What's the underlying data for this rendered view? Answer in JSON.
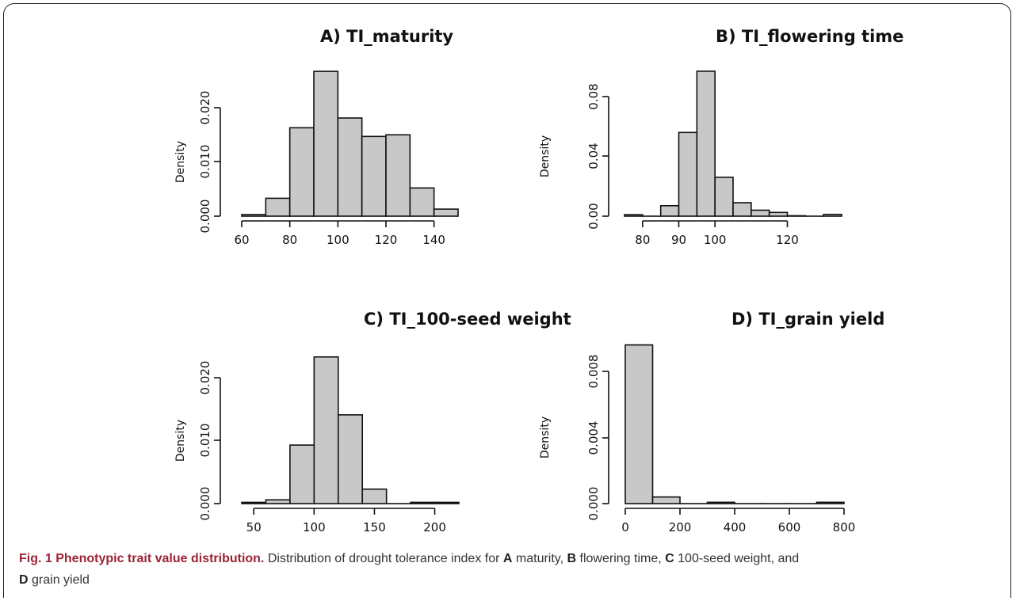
{
  "chart_data": [
    {
      "type": "bar",
      "title": "A) TI_maturity",
      "ylabel": "Density",
      "xlim": [
        60,
        150
      ],
      "ylim": [
        0,
        0.026
      ],
      "xticks": [
        60,
        80,
        100,
        120,
        140
      ],
      "xtick_labels": [
        "60",
        "80",
        "100",
        "120",
        "140"
      ],
      "yticks": [
        0,
        0.01,
        0.02
      ],
      "ytick_labels": [
        "0.000",
        "0.010",
        "0.020"
      ],
      "bins": [
        [
          60,
          70
        ],
        [
          70,
          80
        ],
        [
          80,
          90
        ],
        [
          90,
          100
        ],
        [
          100,
          110
        ],
        [
          110,
          120
        ],
        [
          120,
          130
        ],
        [
          130,
          140
        ],
        [
          140,
          150
        ]
      ],
      "values": [
        0.0003,
        0.0033,
        0.0163,
        0.0267,
        0.0181,
        0.0147,
        0.015,
        0.0052,
        0.0013
      ]
    },
    {
      "type": "bar",
      "title": "B) TI_flowering time",
      "ylabel": "Density",
      "xlim": [
        75,
        135
      ],
      "ylim": [
        0,
        0.1
      ],
      "xticks": [
        80,
        90,
        100,
        120
      ],
      "xtick_labels": [
        "80",
        "90",
        "100",
        "120"
      ],
      "yticks": [
        0,
        0.04,
        0.08
      ],
      "ytick_labels": [
        "0.00",
        "0.04",
        "0.08"
      ],
      "bins": [
        [
          75,
          80
        ],
        [
          80,
          85
        ],
        [
          85,
          90
        ],
        [
          90,
          95
        ],
        [
          95,
          100
        ],
        [
          100,
          105
        ],
        [
          105,
          110
        ],
        [
          110,
          115
        ],
        [
          115,
          120
        ],
        [
          120,
          125
        ],
        [
          125,
          130
        ],
        [
          130,
          135
        ]
      ],
      "values": [
        0.001,
        0,
        0.007,
        0.056,
        0.097,
        0.026,
        0.009,
        0.004,
        0.0025,
        0.0003,
        0,
        0.0012
      ]
    },
    {
      "type": "bar",
      "title": "C) TI_100-seed weight",
      "ylabel": "Density",
      "xlim": [
        40,
        220
      ],
      "ylim": [
        0,
        0.024
      ],
      "xticks": [
        50,
        100,
        150,
        200
      ],
      "xtick_labels": [
        "50",
        "100",
        "150",
        "200"
      ],
      "yticks": [
        0,
        0.01,
        0.02
      ],
      "ytick_labels": [
        "0.000",
        "0.010",
        "0.020"
      ],
      "bins": [
        [
          40,
          60
        ],
        [
          60,
          80
        ],
        [
          80,
          100
        ],
        [
          100,
          120
        ],
        [
          120,
          140
        ],
        [
          140,
          160
        ],
        [
          160,
          180
        ],
        [
          180,
          200
        ],
        [
          200,
          220
        ]
      ],
      "values": [
        0.0002,
        0.0006,
        0.0093,
        0.0233,
        0.0141,
        0.0023,
        0,
        0.0002,
        0.0002
      ]
    },
    {
      "type": "bar",
      "title": "D) TI_grain yield",
      "ylabel": "Density",
      "xlim": [
        0,
        800
      ],
      "ylim": [
        0,
        0.0096
      ],
      "xticks": [
        0,
        200,
        400,
        600,
        800
      ],
      "xtick_labels": [
        "0",
        "200",
        "400",
        "600",
        "800"
      ],
      "yticks": [
        0,
        0.004,
        0.008
      ],
      "ytick_labels": [
        "0.000",
        "0.004",
        "0.008"
      ],
      "bins": [
        [
          0,
          100
        ],
        [
          100,
          200
        ],
        [
          200,
          300
        ],
        [
          300,
          400
        ],
        [
          400,
          500
        ],
        [
          500,
          600
        ],
        [
          600,
          700
        ],
        [
          700,
          800
        ]
      ],
      "values": [
        0.0096,
        0.0004,
        0,
        8e-05,
        0,
        0,
        0,
        8e-05
      ]
    }
  ],
  "caption": {
    "fig_num": "Fig. 1",
    "fig_title": "Phenotypic trait value distribution.",
    "text_1": "Distribution of drought tolerance index for",
    "label_a": "A",
    "text_a": "maturity,",
    "label_b": "B",
    "text_b": "flowering time,",
    "label_c": "C",
    "text_c": "100-seed weight, and",
    "label_d": "D",
    "text_d": "grain yield"
  }
}
